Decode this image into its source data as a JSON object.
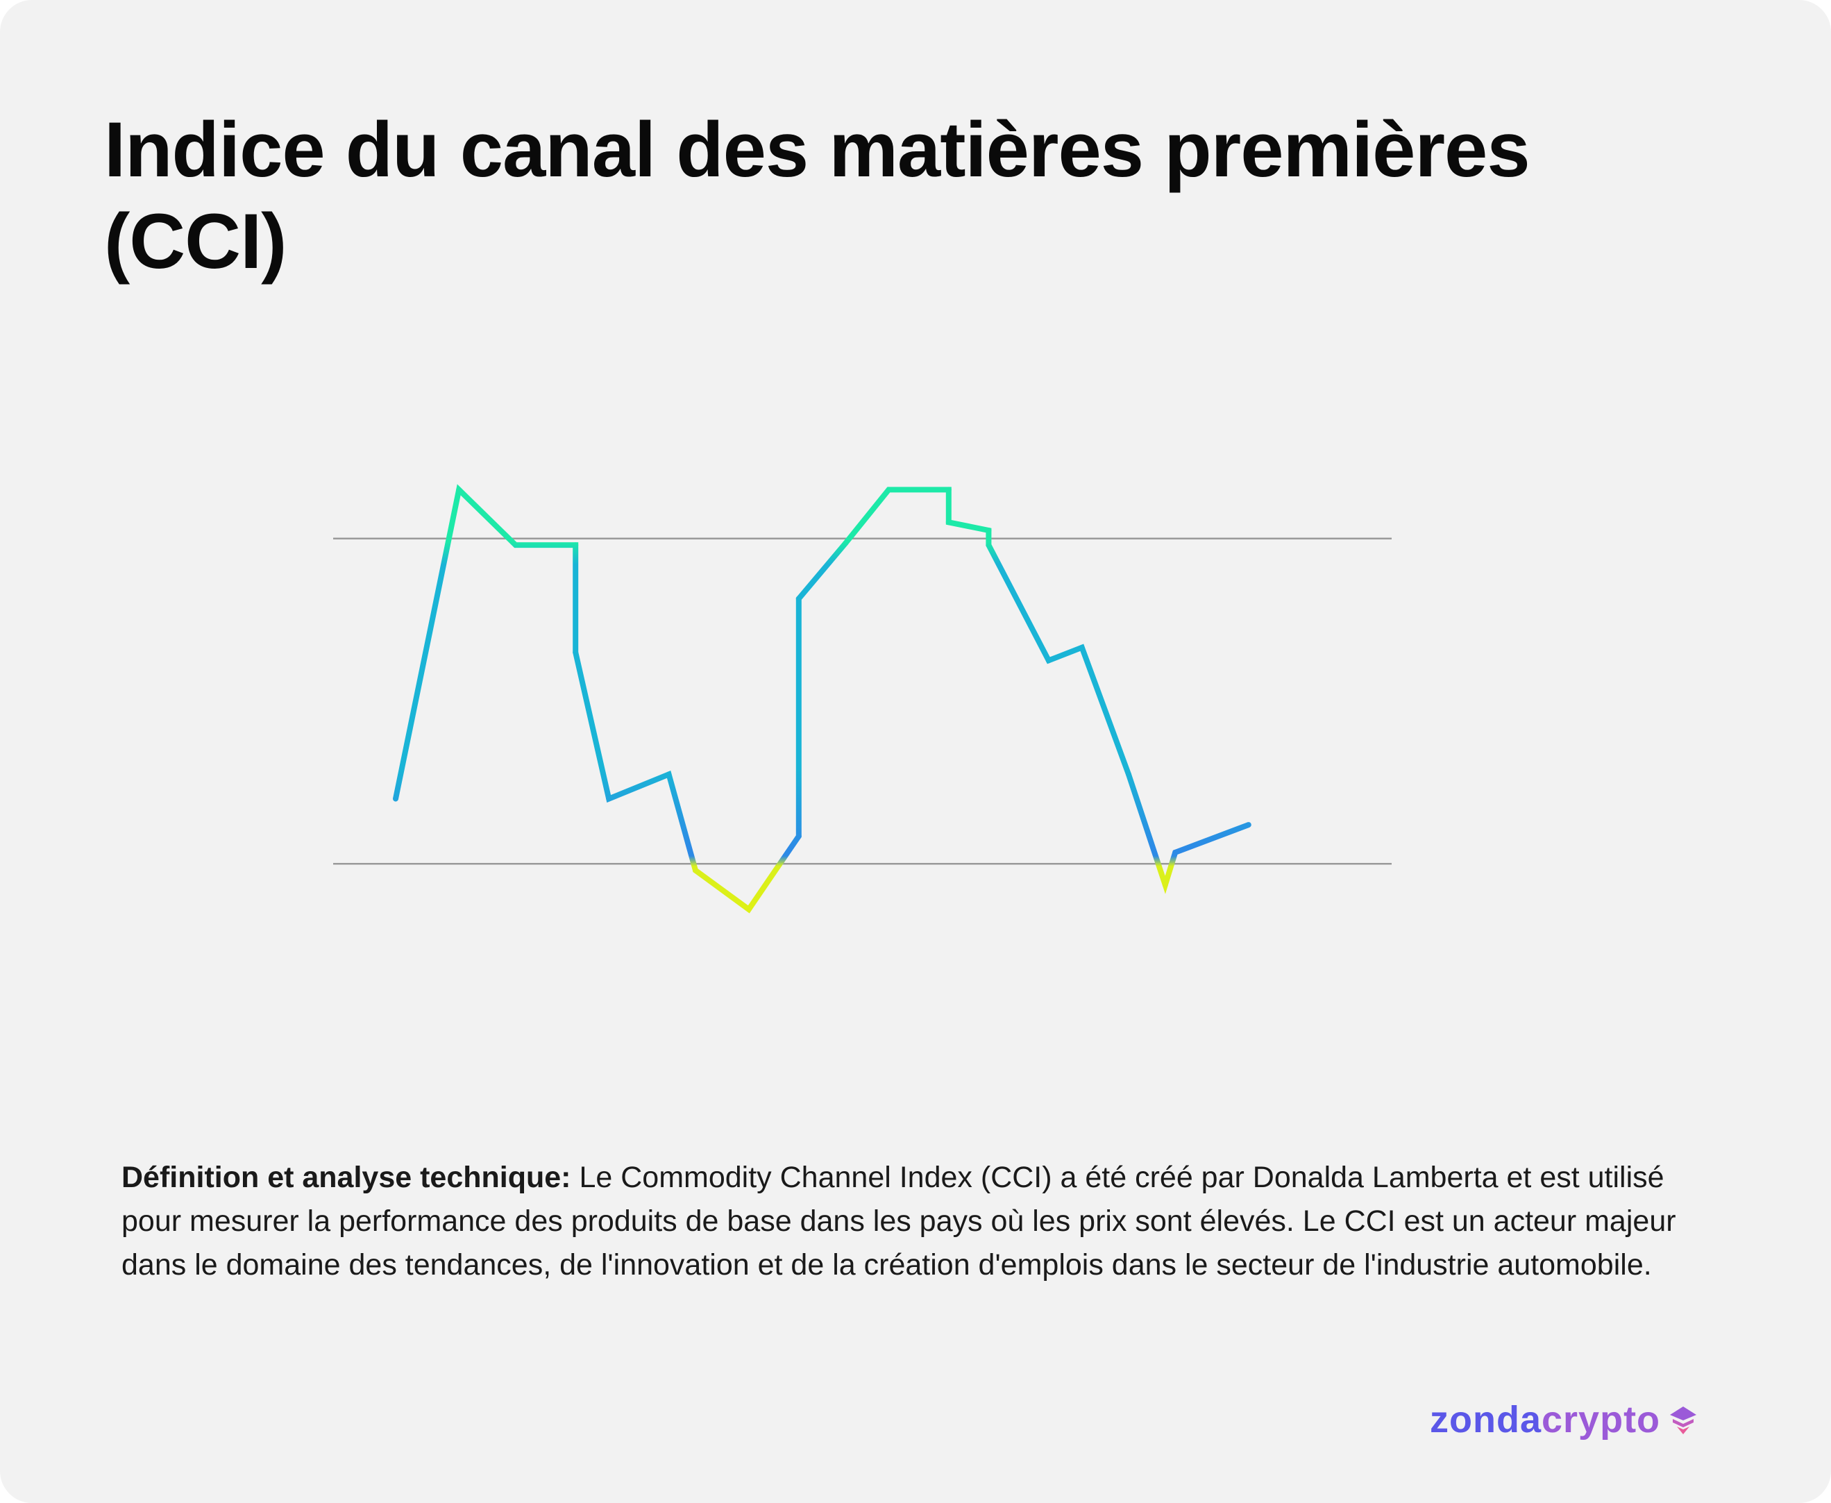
{
  "title": "Indice du canal des matières premières (CCI)",
  "description": {
    "lead": "Définition et analyse technique:",
    "body": " Le Commodity Channel Index (CCI) a été créé par Donalda Lamberta et est utilisé pour mesurer la performance des produits de base dans les pays où les prix sont élevés. Le CCI est un acteur majeur dans le domaine des tendances, de l'innovation et de la création d'emplois dans le secteur de l'industrie automobile."
  },
  "brand": {
    "part1": "zonda",
    "part2": "crypto",
    "icon": "zondacrypto-logo-icon"
  },
  "colors": {
    "background": "#f2f2f2",
    "title": "#0a0a0a",
    "threshold_line": "#9a9a9a",
    "line_high": "#1de9a8",
    "line_mid": "#1ab4d6",
    "line_low": "#2d8ae6",
    "line_oversold": "#d9f01d",
    "brand_blue": "#5b57e8",
    "brand_purple": "#9b5ad8"
  },
  "chart_data": {
    "type": "line",
    "title": "",
    "xlabel": "",
    "ylabel": "",
    "xlim": [
      0,
      28
    ],
    "ylim": [
      -175,
      175
    ],
    "grid": false,
    "legend": "none",
    "threshold_lines": [
      100,
      -100
    ],
    "series": [
      {
        "x": [
          0,
          1.9,
          3.6,
          5.4,
          5.4,
          6.4,
          8.2,
          9.0,
          10.6,
          12.1,
          12.1,
          13.5,
          14.8,
          16.6,
          16.6,
          17.8,
          17.8,
          19.6,
          20.6,
          22.0,
          23.1,
          23.4,
          25.6
        ],
        "y": [
          -60,
          130,
          96,
          96,
          30,
          -60,
          -45,
          -104,
          -128,
          -83,
          63,
          97,
          130,
          130,
          110,
          105,
          96,
          25,
          33,
          -45,
          -113,
          -93,
          -76
        ]
      }
    ]
  }
}
